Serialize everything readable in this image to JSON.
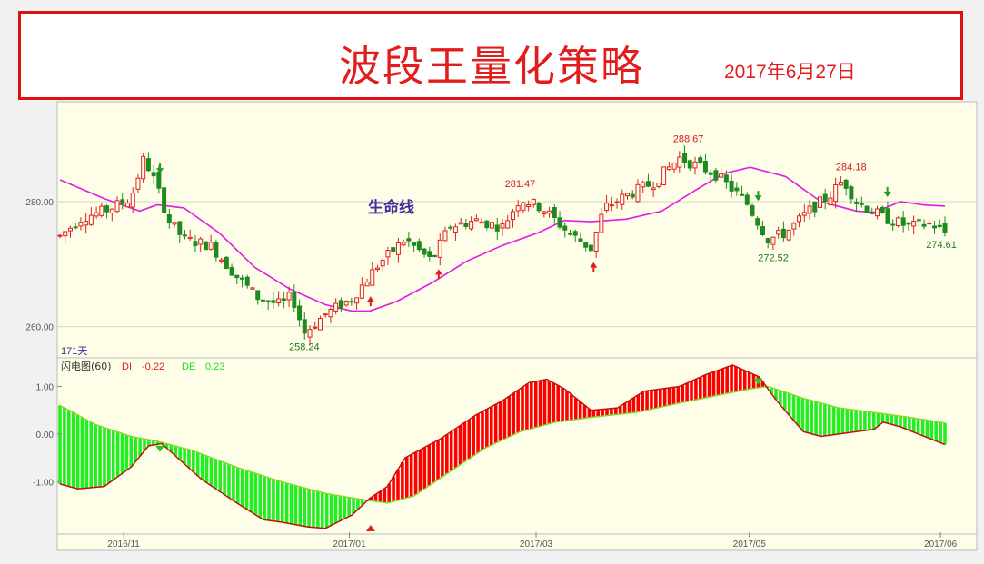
{
  "header": {
    "title": "波段王量化策略",
    "date": "2017年6月27日"
  },
  "colors": {
    "up": "#e02020",
    "down": "#1f8a1f",
    "life_line": "#e21ae2",
    "di_line": "#c01010",
    "de_line": "#7fdc2c",
    "fill_pos": "#ff0000",
    "fill_neg": "#22ee22",
    "panel_bg": "#fdfde8",
    "axis": "#888888"
  },
  "chart_data": [
    {
      "type": "candlestick",
      "ylim": [
        255,
        296
      ],
      "yticks": [
        "280.00",
        "260.00"
      ],
      "life_line_label": "生命线",
      "period_label": "171天",
      "annotations": [
        {
          "text": "288.67",
          "x": 0.71,
          "y": 288.67,
          "color": "red"
        },
        {
          "text": "281.47",
          "x": 0.52,
          "y": 281.47,
          "color": "red"
        },
        {
          "text": "284.18",
          "x": 0.894,
          "y": 284.18,
          "color": "red"
        },
        {
          "text": "258.24",
          "x": 0.276,
          "y": 258.24,
          "color": "green"
        },
        {
          "text": "272.52",
          "x": 0.806,
          "y": 272.52,
          "color": "green"
        },
        {
          "text": "274.61",
          "x": 0.996,
          "y": 274.61,
          "color": "green"
        }
      ],
      "signals": [
        {
          "kind": "sell",
          "x": 0.113
        },
        {
          "kind": "buy",
          "x": 0.351
        },
        {
          "kind": "buy",
          "x": 0.428
        },
        {
          "kind": "buy",
          "x": 0.603
        },
        {
          "kind": "sell",
          "x": 0.789
        },
        {
          "kind": "sell",
          "x": 0.935
        }
      ],
      "price_path": [
        [
          0,
          274.5
        ],
        [
          0.025,
          277.5
        ],
        [
          0.05,
          278.5
        ],
        [
          0.08,
          280.5
        ],
        [
          0.095,
          287
        ],
        [
          0.108,
          283
        ],
        [
          0.123,
          277
        ],
        [
          0.14,
          274
        ],
        [
          0.17,
          273
        ],
        [
          0.2,
          268
        ],
        [
          0.225,
          264.5
        ],
        [
          0.25,
          263.5
        ],
        [
          0.262,
          265
        ],
        [
          0.276,
          259
        ],
        [
          0.3,
          262
        ],
        [
          0.33,
          264.5
        ],
        [
          0.36,
          270
        ],
        [
          0.39,
          274
        ],
        [
          0.42,
          270.5
        ],
        [
          0.44,
          276
        ],
        [
          0.47,
          277
        ],
        [
          0.5,
          276
        ],
        [
          0.52,
          280.5
        ],
        [
          0.545,
          279
        ],
        [
          0.575,
          275
        ],
        [
          0.6,
          272.5
        ],
        [
          0.615,
          279
        ],
        [
          0.64,
          281
        ],
        [
          0.67,
          283
        ],
        [
          0.7,
          287
        ],
        [
          0.74,
          284.5
        ],
        [
          0.775,
          280
        ],
        [
          0.8,
          274
        ],
        [
          0.82,
          275
        ],
        [
          0.85,
          279
        ],
        [
          0.87,
          281
        ],
        [
          0.885,
          283.5
        ],
        [
          0.9,
          280
        ],
        [
          0.93,
          277.5
        ],
        [
          0.96,
          276
        ],
        [
          0.985,
          276.5
        ],
        [
          1.0,
          275
        ]
      ],
      "life_line": [
        [
          0,
          283.5
        ],
        [
          0.05,
          280.5
        ],
        [
          0.09,
          278.5
        ],
        [
          0.11,
          279.5
        ],
        [
          0.14,
          279
        ],
        [
          0.18,
          275
        ],
        [
          0.22,
          269.5
        ],
        [
          0.26,
          266
        ],
        [
          0.3,
          263.5
        ],
        [
          0.33,
          262.5
        ],
        [
          0.35,
          262.5
        ],
        [
          0.38,
          264
        ],
        [
          0.42,
          267
        ],
        [
          0.46,
          270.5
        ],
        [
          0.5,
          273
        ],
        [
          0.54,
          275
        ],
        [
          0.57,
          277
        ],
        [
          0.6,
          276.8
        ],
        [
          0.64,
          277.2
        ],
        [
          0.68,
          278.5
        ],
        [
          0.72,
          282
        ],
        [
          0.75,
          284.5
        ],
        [
          0.78,
          285.5
        ],
        [
          0.82,
          284
        ],
        [
          0.86,
          280
        ],
        [
          0.9,
          278.5
        ],
        [
          0.92,
          278.3
        ],
        [
          0.95,
          280
        ],
        [
          0.975,
          279.5
        ],
        [
          1.0,
          279.3
        ]
      ]
    },
    {
      "type": "area",
      "indicator": "闪电图(60)",
      "legend": [
        {
          "name": "DI",
          "value": "-0.22"
        },
        {
          "name": "DE",
          "value": "0.23"
        }
      ],
      "ylim": [
        -2.1,
        1.6
      ],
      "yticks": [
        "1.00",
        "0.00",
        "-1.00"
      ],
      "series": [
        {
          "name": "DI",
          "points": [
            [
              0,
              -1.05
            ],
            [
              0.02,
              -1.15
            ],
            [
              0.05,
              -1.1
            ],
            [
              0.08,
              -0.7
            ],
            [
              0.1,
              -0.25
            ],
            [
              0.115,
              -0.2
            ],
            [
              0.13,
              -0.45
            ],
            [
              0.16,
              -0.95
            ],
            [
              0.2,
              -1.45
            ],
            [
              0.23,
              -1.8
            ],
            [
              0.25,
              -1.85
            ],
            [
              0.28,
              -1.95
            ],
            [
              0.3,
              -1.98
            ],
            [
              0.33,
              -1.7
            ],
            [
              0.35,
              -1.35
            ],
            [
              0.37,
              -1.1
            ],
            [
              0.39,
              -0.5
            ],
            [
              0.43,
              -0.1
            ],
            [
              0.47,
              0.4
            ],
            [
              0.5,
              0.7
            ],
            [
              0.53,
              1.08
            ],
            [
              0.55,
              1.15
            ],
            [
              0.57,
              0.95
            ],
            [
              0.6,
              0.5
            ],
            [
              0.63,
              0.55
            ],
            [
              0.66,
              0.9
            ],
            [
              0.7,
              1.0
            ],
            [
              0.73,
              1.25
            ],
            [
              0.76,
              1.45
            ],
            [
              0.79,
              1.2
            ],
            [
              0.81,
              0.7
            ],
            [
              0.84,
              0.05
            ],
            [
              0.86,
              -0.05
            ],
            [
              0.88,
              0.0
            ],
            [
              0.9,
              0.05
            ],
            [
              0.92,
              0.1
            ],
            [
              0.93,
              0.25
            ],
            [
              0.95,
              0.15
            ],
            [
              0.97,
              0.0
            ],
            [
              1.0,
              -0.22
            ]
          ]
        },
        {
          "name": "DE",
          "points": [
            [
              0,
              0.6
            ],
            [
              0.04,
              0.2
            ],
            [
              0.08,
              -0.05
            ],
            [
              0.11,
              -0.15
            ],
            [
              0.15,
              -0.35
            ],
            [
              0.2,
              -0.7
            ],
            [
              0.25,
              -1.0
            ],
            [
              0.3,
              -1.25
            ],
            [
              0.35,
              -1.4
            ],
            [
              0.37,
              -1.45
            ],
            [
              0.4,
              -1.3
            ],
            [
              0.44,
              -0.8
            ],
            [
              0.48,
              -0.3
            ],
            [
              0.52,
              0.05
            ],
            [
              0.56,
              0.25
            ],
            [
              0.6,
              0.35
            ],
            [
              0.65,
              0.45
            ],
            [
              0.7,
              0.65
            ],
            [
              0.74,
              0.8
            ],
            [
              0.78,
              0.95
            ],
            [
              0.8,
              1.0
            ],
            [
              0.84,
              0.75
            ],
            [
              0.88,
              0.55
            ],
            [
              0.92,
              0.45
            ],
            [
              0.96,
              0.35
            ],
            [
              1.0,
              0.23
            ]
          ]
        }
      ],
      "signals": [
        {
          "kind": "sell",
          "x": 0.113
        },
        {
          "kind": "buy",
          "x": 0.351
        },
        {
          "kind": "sell",
          "x": 0.789
        }
      ]
    }
  ],
  "x_axis": {
    "labels": [
      {
        "text": "2016/11",
        "x": 0.072
      },
      {
        "text": "2017/01",
        "x": 0.327
      },
      {
        "text": "2017/03",
        "x": 0.538
      },
      {
        "text": "2017/05",
        "x": 0.779
      },
      {
        "text": "2017/06",
        "x": 0.995
      }
    ]
  }
}
